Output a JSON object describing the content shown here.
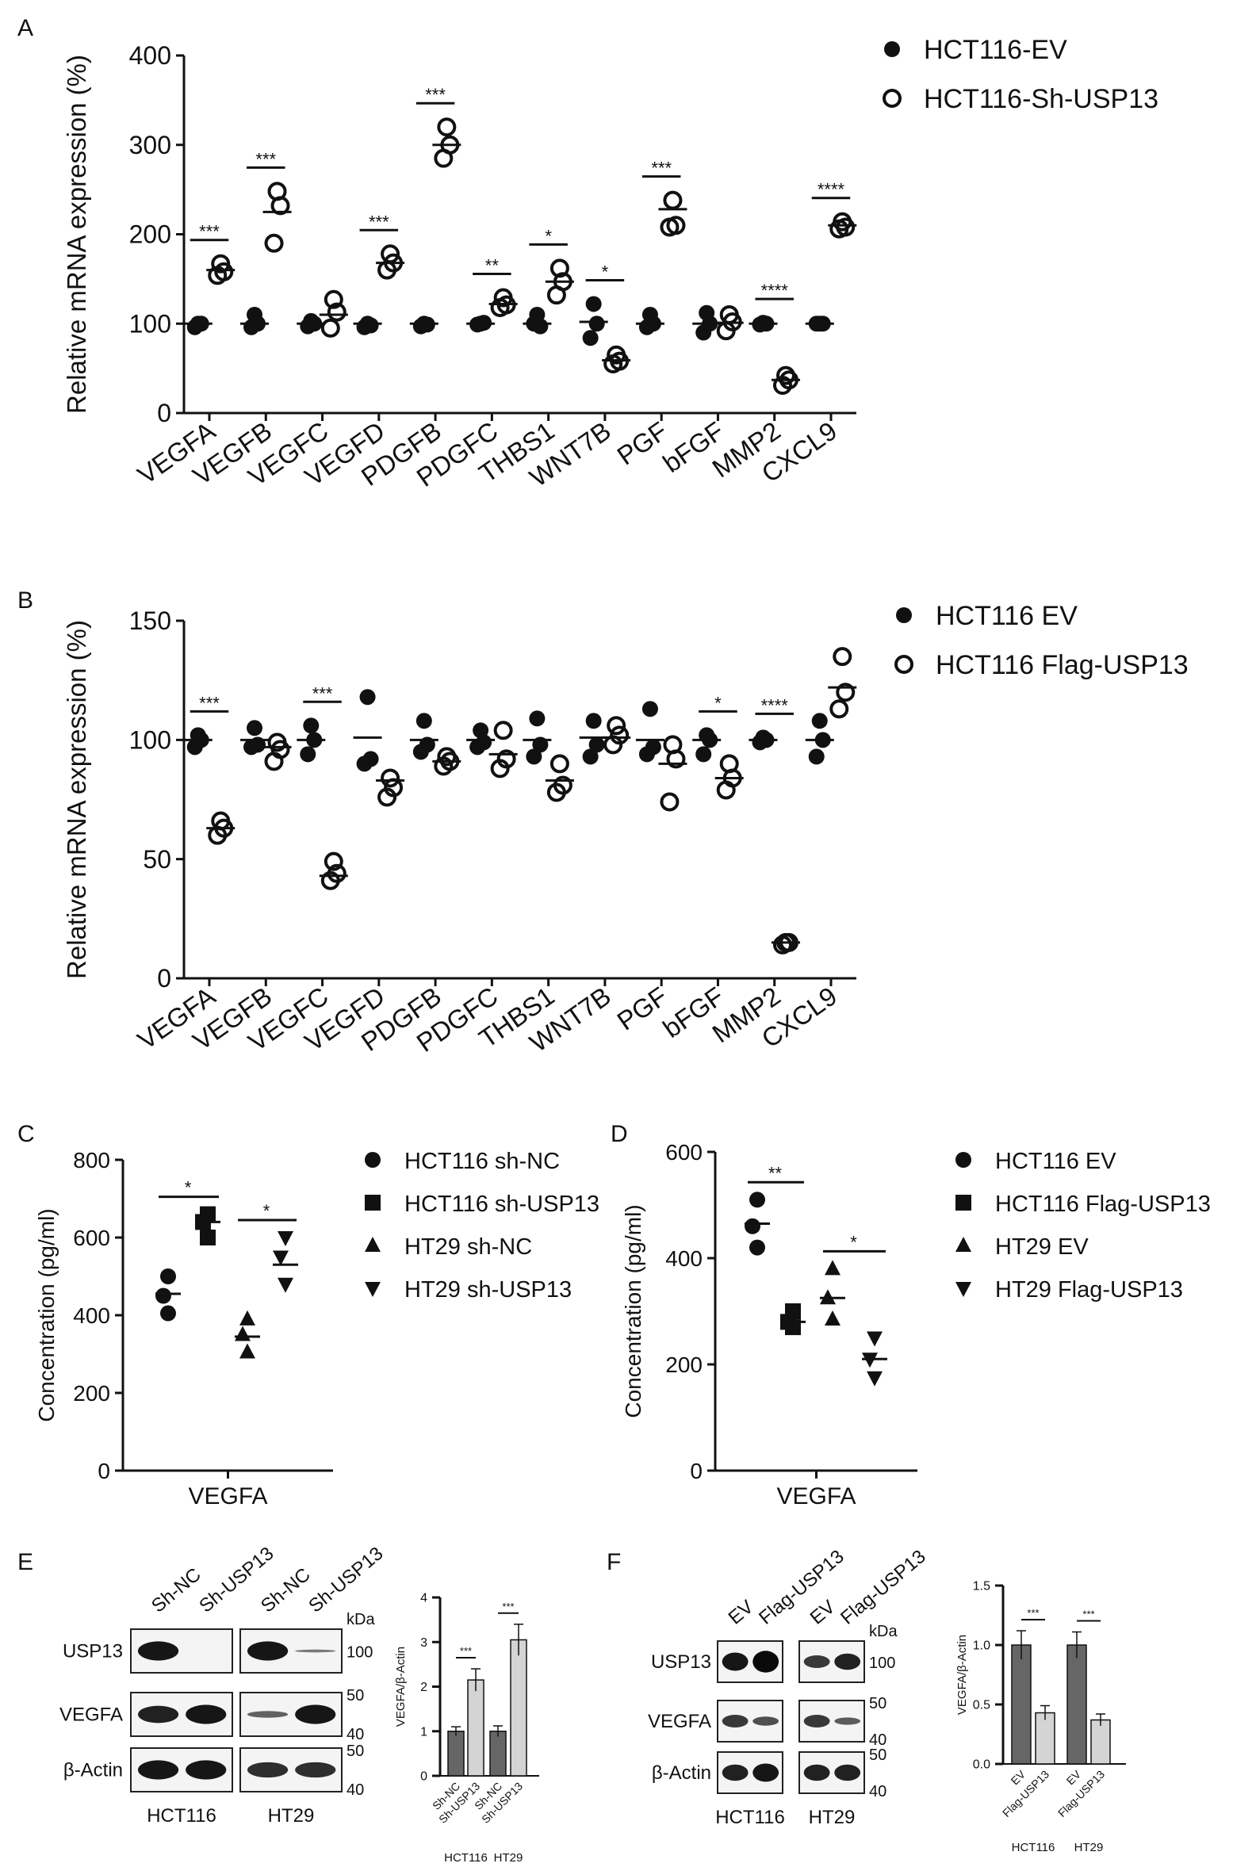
{
  "chart_data": [
    {
      "panel": "A",
      "type": "scatter",
      "ylabel": "Relative mRNA expression (%)",
      "ylim": [
        0,
        400
      ],
      "yticks": [
        0,
        100,
        200,
        300,
        400
      ],
      "categories": [
        "VEGFA",
        "VEGFB",
        "VEGFC",
        "VEGFD",
        "PDGFB",
        "PDGFC",
        "THBS1",
        "WNT7B",
        "PGF",
        "bFGF",
        "MMP2",
        "CXCL9"
      ],
      "series": [
        {
          "name": "HCT116-EV",
          "marker": "filled-circle",
          "values": [
            [
              100,
              100,
              96
            ],
            [
              110,
              100,
              96
            ],
            [
              103,
              100,
              97
            ],
            [
              100,
              98,
              96
            ],
            [
              100,
              99,
              97
            ],
            [
              100,
              101,
              99
            ],
            [
              110,
              97,
              100
            ],
            [
              122,
              100,
              84
            ],
            [
              110,
              100,
              96
            ],
            [
              112,
              100,
              90
            ],
            [
              101,
              100,
              99
            ],
            [
              100,
              100,
              100
            ]
          ],
          "means": [
            100,
            100,
            100,
            100,
            100,
            100,
            100,
            102,
            100,
            100,
            100,
            100
          ]
        },
        {
          "name": "HCT116-Sh-USP13",
          "marker": "open-circle",
          "values": [
            [
              167,
              158,
              154
            ],
            [
              248,
              232,
              190
            ],
            [
              127,
              113,
              95
            ],
            [
              178,
              168,
              160
            ],
            [
              null,
              null,
              null
            ],
            [
              129,
              121,
              118
            ],
            [
              162,
              147,
              132
            ],
            [
              65,
              58,
              55
            ],
            [
              238,
              210,
              208
            ],
            [
              110,
              102,
              92
            ],
            [
              42,
              37,
              31
            ],
            [
              214,
              208,
              206
            ]
          ],
          "means": [
            160,
            225,
            110,
            168,
            300,
            122,
            147,
            59,
            228,
            101,
            37,
            210
          ]
        }
      ],
      "significance": [
        "***",
        "***",
        "",
        "***",
        "***",
        "**",
        "*",
        "*",
        "***",
        "",
        "****",
        "****"
      ],
      "pdgfb_sh_values": [
        320,
        300,
        285
      ]
    },
    {
      "panel": "B",
      "type": "scatter",
      "ylabel": "Relative mRNA expression (%)",
      "ylim": [
        0,
        150
      ],
      "yticks": [
        0,
        50,
        100,
        150
      ],
      "categories": [
        "VEGFA",
        "VEGFB",
        "VEGFC",
        "VEGFD",
        "PDGFB",
        "PDGFC",
        "THBS1",
        "WNT7B",
        "PGF",
        "bFGF",
        "MMP2",
        "CXCL9"
      ],
      "series": [
        {
          "name": "HCT116 EV",
          "marker": "filled-circle",
          "values": [
            [
              102,
              100,
              97
            ],
            [
              105,
              98,
              97
            ],
            [
              106,
              100,
              94
            ],
            [
              118,
              92,
              90
            ],
            [
              108,
              98,
              95
            ],
            [
              104,
              99,
              97
            ],
            [
              109,
              98,
              93
            ],
            [
              108,
              98,
              93
            ],
            [
              113,
              97,
              94
            ],
            [
              102,
              100,
              94
            ],
            [
              101,
              100,
              99
            ],
            [
              108,
              100,
              93
            ]
          ],
          "means": [
            100,
            100,
            100,
            101,
            100,
            100,
            100,
            101,
            100,
            100,
            100,
            100
          ]
        },
        {
          "name": "HCT116 Flag-USP13",
          "marker": "open-circle",
          "values": [
            [
              66,
              63,
              60
            ],
            [
              99,
              96,
              91
            ],
            [
              49,
              44,
              41
            ],
            [
              84,
              80,
              76
            ],
            [
              93,
              91,
              89
            ],
            [
              104,
              92,
              88
            ],
            [
              90,
              81,
              78
            ],
            [
              106,
              102,
              98
            ],
            [
              98,
              92,
              74
            ],
            [
              90,
              84,
              79
            ],
            [
              15,
              15,
              14
            ],
            [
              135,
              120,
              113
            ]
          ],
          "means": [
            63,
            97,
            43,
            83,
            91,
            94,
            83,
            101,
            90,
            84,
            15,
            122
          ]
        }
      ],
      "significance": [
        "***",
        "",
        "***",
        "",
        "",
        "",
        "",
        "",
        "",
        "*",
        "****",
        ""
      ]
    },
    {
      "panel": "C",
      "type": "scatter",
      "ylabel": "Concentration (pg/ml)",
      "ylim": [
        0,
        800
      ],
      "yticks": [
        0,
        200,
        400,
        600,
        800
      ],
      "categories": [
        "VEGFA"
      ],
      "series": [
        {
          "name": "HCT116 sh-NC",
          "marker": "circle",
          "values": [
            500,
            450,
            405
          ],
          "mean": 455
        },
        {
          "name": "HCT116 sh-USP13",
          "marker": "square",
          "values": [
            660,
            640,
            600
          ],
          "mean": 640
        },
        {
          "name": "HT29 sh-NC",
          "marker": "triangle-up",
          "values": [
            390,
            350,
            305
          ],
          "mean": 345
        },
        {
          "name": "HT29 sh-USP13",
          "marker": "triangle-down",
          "values": [
            600,
            550,
            480
          ],
          "mean": 530
        }
      ],
      "significance": [
        "*",
        "*"
      ]
    },
    {
      "panel": "D",
      "type": "scatter",
      "ylabel": "Concentration (pg/ml)",
      "ylim": [
        0,
        600
      ],
      "yticks": [
        0,
        200,
        400,
        600
      ],
      "categories": [
        "VEGFA"
      ],
      "series": [
        {
          "name": "HCT116 EV",
          "marker": "circle",
          "values": [
            510,
            460,
            420
          ],
          "mean": 465
        },
        {
          "name": "HCT116 Flag-USP13",
          "marker": "square",
          "values": [
            300,
            280,
            270
          ],
          "mean": 280
        },
        {
          "name": "HT29 EV",
          "marker": "triangle-up",
          "values": [
            380,
            325,
            285
          ],
          "mean": 325
        },
        {
          "name": "HT29 Flag-USP13",
          "marker": "triangle-down",
          "values": [
            250,
            210,
            175
          ],
          "mean": 210
        }
      ],
      "significance": [
        "**",
        "*"
      ]
    },
    {
      "panel": "E",
      "type": "bar",
      "ylabel": "VEGFA/β-Actin",
      "ylim": [
        0,
        4
      ],
      "yticks": [
        "0",
        "1",
        "2",
        "3",
        "4"
      ],
      "categories": [
        "Sh-NC",
        "Sh-USP13",
        "Sh-NC",
        "Sh-USP13"
      ],
      "groups": [
        "HCT116",
        "HT29"
      ],
      "values": [
        1.0,
        2.15,
        1.0,
        3.05
      ],
      "errors": [
        0.1,
        0.25,
        0.12,
        0.35
      ],
      "significance": [
        "***",
        "***"
      ]
    },
    {
      "panel": "F",
      "type": "bar",
      "ylabel": "VEGFA/β-Actin",
      "ylim": [
        0,
        1.5
      ],
      "yticks": [
        "0.0",
        "0.5",
        "1.0",
        "1.5"
      ],
      "categories": [
        "EV",
        "Flag-USP13",
        "EV",
        "Flag-USP13"
      ],
      "groups": [
        "HCT116",
        "HT29"
      ],
      "values": [
        1.0,
        0.43,
        1.0,
        0.37
      ],
      "errors": [
        0.12,
        0.06,
        0.11,
        0.05
      ],
      "significance": [
        "***",
        "***"
      ]
    }
  ],
  "blots": {
    "E": {
      "lanes_left": [
        "Sh-NC",
        "Sh-USP13"
      ],
      "lanes_right": [
        "Sh-NC",
        "Sh-USP13"
      ],
      "rows": [
        "USP13",
        "VEGFA",
        "β-Actin"
      ],
      "kda_label": "kDa",
      "markers": [
        "100",
        "50",
        "40",
        "50",
        "40"
      ],
      "cell_lines": [
        "HCT116",
        "HT29"
      ]
    },
    "F": {
      "lanes_left": [
        "EV",
        "Flag-USP13"
      ],
      "lanes_right": [
        "EV",
        "Flag-USP13"
      ],
      "rows": [
        "USP13",
        "VEGFA",
        "β-Actin"
      ],
      "kda_label": "kDa",
      "markers": [
        "100",
        "50",
        "40",
        "50",
        "40"
      ],
      "cell_lines": [
        "HCT116",
        "HT29"
      ]
    }
  },
  "panel_labels": [
    "A",
    "B",
    "C",
    "D",
    "E",
    "F"
  ]
}
